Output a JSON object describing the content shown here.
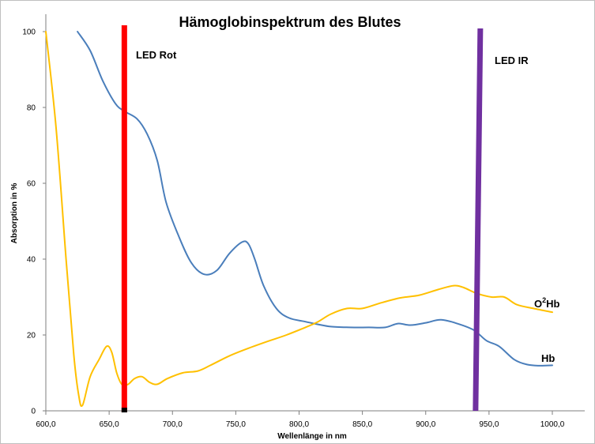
{
  "chart_data": {
    "type": "line",
    "title": "Hämoglobinspektrum des Blutes",
    "xlabel": "Wellenlänge in nm",
    "ylabel": "Absorption in %",
    "xlim": [
      600,
      1000
    ],
    "ylim": [
      0,
      100
    ],
    "x_ticks": [
      "600,0",
      "650,0",
      "700,0",
      "750,0",
      "800,0",
      "850,0",
      "900,0",
      "950,0",
      "1000,0"
    ],
    "y_ticks": [
      "0",
      "20",
      "40",
      "60",
      "80",
      "100"
    ],
    "grid": false,
    "series": [
      {
        "name": "Hb",
        "color": "#4a7ebb",
        "points": [
          [
            625,
            100
          ],
          [
            635,
            95
          ],
          [
            645,
            87
          ],
          [
            655,
            81
          ],
          [
            662,
            79
          ],
          [
            672,
            77
          ],
          [
            680,
            73
          ],
          [
            688,
            66
          ],
          [
            695,
            55
          ],
          [
            705,
            46
          ],
          [
            715,
            39
          ],
          [
            725,
            36
          ],
          [
            735,
            37
          ],
          [
            745,
            41.5
          ],
          [
            755,
            44.5
          ],
          [
            760,
            44
          ],
          [
            765,
            40
          ],
          [
            772,
            33
          ],
          [
            782,
            27
          ],
          [
            792,
            24.5
          ],
          [
            805,
            23.5
          ],
          [
            815,
            22.8
          ],
          [
            825,
            22.2
          ],
          [
            840,
            22
          ],
          [
            855,
            22
          ],
          [
            868,
            22
          ],
          [
            878,
            23
          ],
          [
            888,
            22.6
          ],
          [
            900,
            23.2
          ],
          [
            912,
            24
          ],
          [
            925,
            23
          ],
          [
            938,
            21.3
          ],
          [
            948,
            18.5
          ],
          [
            958,
            17
          ],
          [
            970,
            13.5
          ],
          [
            980,
            12.2
          ],
          [
            990,
            11.9
          ],
          [
            1000,
            12
          ]
        ]
      },
      {
        "name": "O²Hb",
        "color": "#ffc000",
        "points": [
          [
            600,
            100
          ],
          [
            608,
            75
          ],
          [
            616,
            40
          ],
          [
            622,
            15
          ],
          [
            626,
            4
          ],
          [
            629,
            1.5
          ],
          [
            635,
            9
          ],
          [
            642,
            13.5
          ],
          [
            648,
            17
          ],
          [
            652,
            15.5
          ],
          [
            656,
            10
          ],
          [
            660,
            7
          ],
          [
            665,
            7
          ],
          [
            670,
            8.5
          ],
          [
            676,
            9
          ],
          [
            682,
            7.5
          ],
          [
            688,
            7
          ],
          [
            696,
            8.5
          ],
          [
            708,
            10
          ],
          [
            720,
            10.5
          ],
          [
            730,
            12
          ],
          [
            745,
            14.5
          ],
          [
            760,
            16.5
          ],
          [
            775,
            18.3
          ],
          [
            790,
            20
          ],
          [
            805,
            22
          ],
          [
            815,
            23.5
          ],
          [
            825,
            25.5
          ],
          [
            838,
            27
          ],
          [
            850,
            27
          ],
          [
            865,
            28.5
          ],
          [
            880,
            29.8
          ],
          [
            895,
            30.5
          ],
          [
            910,
            32
          ],
          [
            922,
            33
          ],
          [
            930,
            32.5
          ],
          [
            940,
            31
          ],
          [
            952,
            30
          ],
          [
            962,
            30
          ],
          [
            972,
            28
          ],
          [
            985,
            27
          ],
          [
            1000,
            26
          ]
        ]
      }
    ],
    "markers": [
      {
        "label": "LED Rot",
        "x": 662,
        "color": "#ff0000"
      },
      {
        "label": "LED IR",
        "x": 940,
        "color": "#7030a0"
      }
    ],
    "series_labels": {
      "hb": "Hb",
      "o2hb_base": "O",
      "o2hb_sup": "2",
      "o2hb_rest": "Hb"
    }
  }
}
